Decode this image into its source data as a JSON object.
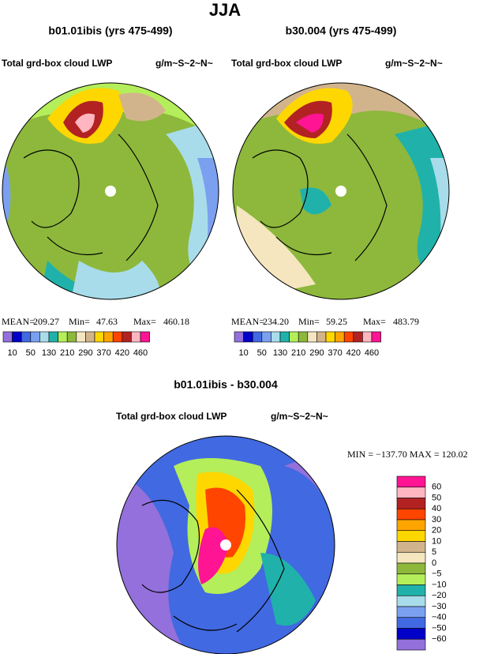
{
  "title": "JJA",
  "panels": [
    {
      "title": "b01.01ibis (yrs 475-499)",
      "field": "Total grd-box cloud LWP",
      "units": "g/m~S~2~N~",
      "stats": [
        {
          "label": "MEAN=",
          "value": "209.27"
        },
        {
          "label": "Min=",
          "value": "47.63"
        },
        {
          "label": "Max=",
          "value": "460.18"
        }
      ]
    },
    {
      "title": "b30.004 (yrs 475-499)",
      "field": "Total grd-box cloud LWP",
      "units": "g/m~S~2~N~",
      "stats": [
        {
          "label": "MEAN=",
          "value": "234.20"
        },
        {
          "label": "Min=",
          "value": "59.25"
        },
        {
          "label": "Max=",
          "value": "483.79"
        }
      ]
    },
    {
      "title": "b01.01ibis - b30.004",
      "field": "Total grd-box cloud LWP",
      "units": "g/m~S~2~N~",
      "stats_text": "MIN = −137.70  MAX = 120.02"
    }
  ],
  "colorbars": [
    {
      "colors": [
        "#9370db",
        "#0000c8",
        "#4169e1",
        "#7ba0f0",
        "#a8dcea",
        "#20b2aa",
        "#b4ee5a",
        "#8db83c",
        "#f5e6c0",
        "#d2b48c",
        "#ffd700",
        "#ffa500",
        "#ff4500",
        "#b22222",
        "#ffb6c1",
        "#ff1493"
      ],
      "labels": [
        "10",
        "50",
        "130",
        "210",
        "290",
        "370",
        "420",
        "460"
      ]
    },
    {
      "colors": [
        "#ff1493",
        "#ffb6c1",
        "#b22222",
        "#ff4500",
        "#ffa500",
        "#ffd700",
        "#d2b48c",
        "#f5e6c0",
        "#8db83c",
        "#b4ee5a",
        "#20b2aa",
        "#a8dcea",
        "#7ba0f0",
        "#4169e1",
        "#0000c8",
        "#9370db"
      ],
      "labels": [
        "60",
        "50",
        "40",
        "30",
        "20",
        "10",
        "5",
        "0",
        "−5",
        "−10",
        "−20",
        "−30",
        "−40",
        "−50",
        "−60"
      ]
    }
  ]
}
